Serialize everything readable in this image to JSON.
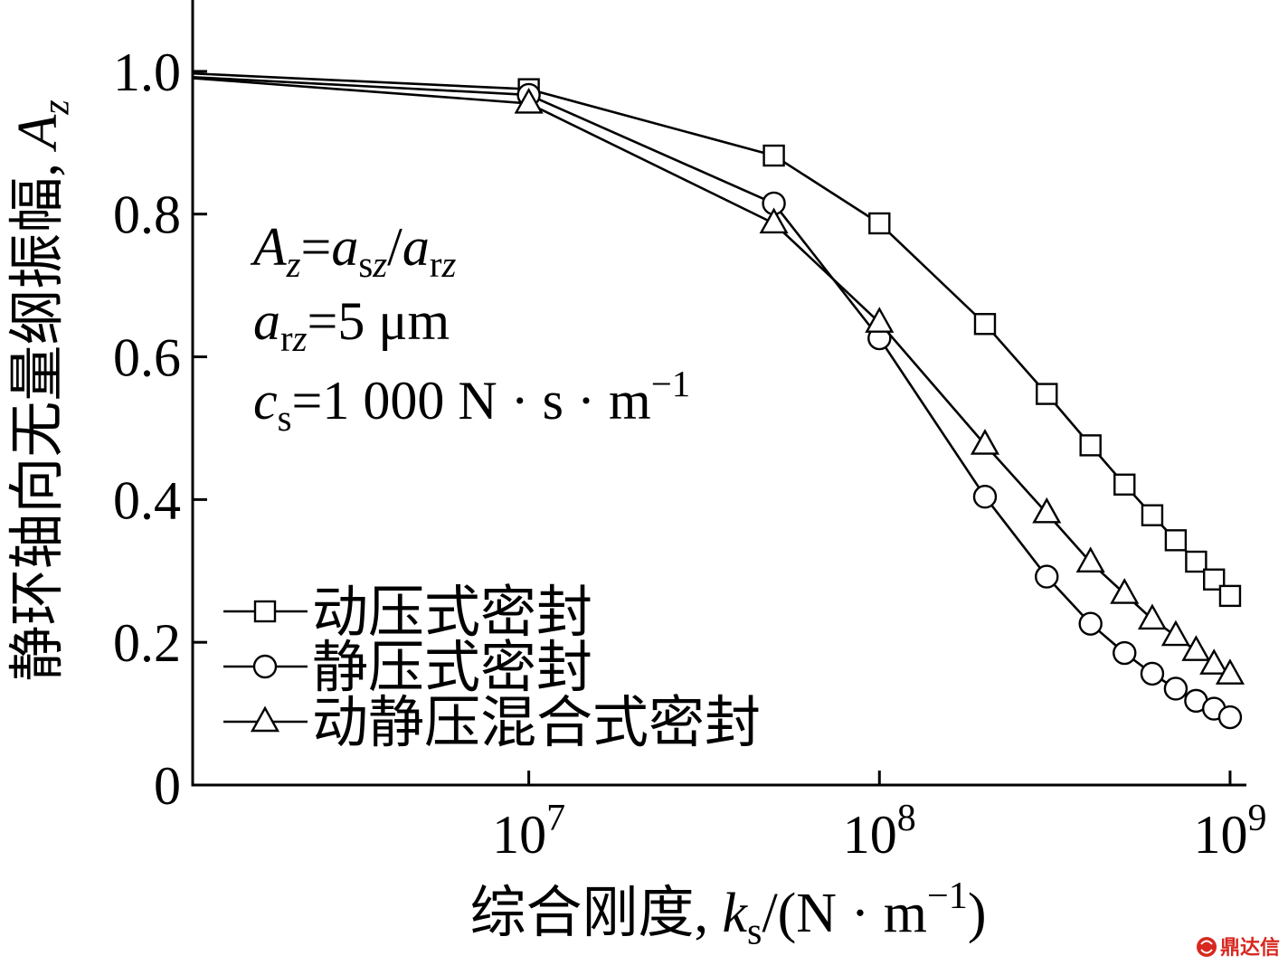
{
  "chart_data": {
    "type": "line",
    "xscale": "log",
    "xlim": [
      1100000.0,
      1100000000.0
    ],
    "ylim": [
      0,
      1.1
    ],
    "grid": false,
    "legend_position": "lower-left",
    "x_ticks": [
      {
        "value": 10000000.0,
        "base": "10",
        "exp": "7"
      },
      {
        "value": 100000000.0,
        "base": "10",
        "exp": "8"
      },
      {
        "value": 1000000000.0,
        "base": "10",
        "exp": "9"
      }
    ],
    "y_ticks": [
      {
        "value": 1.0,
        "label": "1.0"
      },
      {
        "value": 0.8,
        "label": "0.8"
      },
      {
        "value": 0.6,
        "label": "0.6"
      },
      {
        "value": 0.4,
        "label": "0.4"
      },
      {
        "value": 0.2,
        "label": "0.2"
      },
      {
        "value": 0,
        "label": "0"
      }
    ],
    "xlabel": [
      {
        "t": "综合刚度, "
      },
      {
        "t": "k",
        "i": true
      },
      {
        "t": "s",
        "sub": true
      },
      {
        "t": "/(N · m"
      },
      {
        "t": "−1",
        "sup": true
      },
      {
        "t": ")"
      }
    ],
    "ylabel": [
      {
        "t": "静环轴向无量纲振幅, "
      },
      {
        "t": "A",
        "i": true
      },
      {
        "t": "z",
        "i": true,
        "sub": true
      }
    ],
    "annotations": [
      [
        {
          "t": "A",
          "i": true
        },
        {
          "t": "z",
          "i": true,
          "sub": true
        },
        {
          "t": "="
        },
        {
          "t": "a",
          "i": true
        },
        {
          "t": "s",
          "sub": true
        },
        {
          "t": "z",
          "i": true,
          "sub": true
        },
        {
          "t": "/"
        },
        {
          "t": "a",
          "i": true
        },
        {
          "t": "r",
          "sub": true
        },
        {
          "t": "z",
          "i": true,
          "sub": true
        }
      ],
      [
        {
          "t": "a",
          "i": true
        },
        {
          "t": "r",
          "sub": true
        },
        {
          "t": "z",
          "i": true,
          "sub": true
        },
        {
          "t": "=5 μm"
        }
      ],
      [
        {
          "t": "c",
          "i": true
        },
        {
          "t": "s",
          "sub": true
        },
        {
          "t": "=1 000 N · s · m"
        },
        {
          "t": "−1",
          "sup": true
        }
      ]
    ],
    "series": [
      {
        "name": "动压式密封",
        "marker": "square",
        "color": "#000000",
        "x": [
          1000000.0,
          10000000.0,
          50000000.0,
          100000000.0,
          200000000.0,
          300000000.0,
          400000000.0,
          500000000.0,
          600000000.0,
          700000000.0,
          800000000.0,
          900000000.0,
          1000000000.0
        ],
        "y": [
          0.998,
          0.975,
          0.882,
          0.787,
          0.646,
          0.548,
          0.476,
          0.421,
          0.378,
          0.343,
          0.313,
          0.288,
          0.265
        ]
      },
      {
        "name": "静压式密封",
        "marker": "circle",
        "color": "#000000",
        "x": [
          1000000.0,
          10000000.0,
          50000000.0,
          100000000.0,
          200000000.0,
          300000000.0,
          400000000.0,
          500000000.0,
          600000000.0,
          700000000.0,
          800000000.0,
          900000000.0,
          1000000000.0
        ],
        "y": [
          0.993,
          0.967,
          0.815,
          0.626,
          0.404,
          0.292,
          0.226,
          0.185,
          0.156,
          0.135,
          0.118,
          0.107,
          0.095
        ]
      },
      {
        "name": "动静压混合式密封",
        "marker": "triangle",
        "color": "#000000",
        "x": [
          1000000.0,
          10000000.0,
          50000000.0,
          100000000.0,
          200000000.0,
          300000000.0,
          400000000.0,
          500000000.0,
          600000000.0,
          700000000.0,
          800000000.0,
          900000000.0,
          1000000000.0
        ],
        "y": [
          0.992,
          0.955,
          0.787,
          0.648,
          0.477,
          0.381,
          0.312,
          0.268,
          0.232,
          0.209,
          0.188,
          0.169,
          0.155
        ]
      }
    ]
  },
  "watermark": {
    "text": "鼎达信",
    "color": "#d8281f"
  }
}
